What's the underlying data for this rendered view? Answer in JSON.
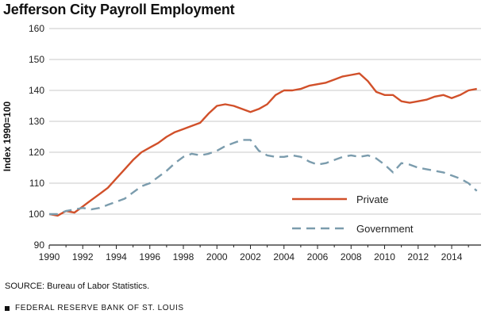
{
  "title": "Jefferson City Payroll Employment",
  "source": "SOURCE: Bureau of Labor Statistics.",
  "footer": "FEDERAL RESERVE BANK OF ST. LOUIS",
  "chart_data": {
    "type": "line",
    "title": "Jefferson City Payroll Employment",
    "ylabel": "Index 1990=100",
    "xlabel": "",
    "xlim": [
      1990,
      2015.75
    ],
    "ylim": [
      90,
      160
    ],
    "yticks": [
      90,
      100,
      110,
      120,
      130,
      140,
      150,
      160
    ],
    "xticks": [
      1990,
      1992,
      1994,
      1996,
      1998,
      2000,
      2002,
      2004,
      2006,
      2008,
      2010,
      2012,
      2014
    ],
    "grid": "horizontal",
    "legend_placement": "lower-right",
    "series": [
      {
        "name": "Private",
        "color": "#d1502a",
        "style": "solid",
        "x": [
          1990,
          1990.5,
          1991,
          1991.5,
          1992,
          1992.5,
          1993,
          1993.5,
          1994,
          1994.5,
          1995,
          1995.5,
          1996,
          1996.5,
          1997,
          1997.5,
          1998,
          1998.5,
          1999,
          1999.5,
          2000,
          2000.5,
          2001,
          2001.5,
          2002,
          2002.5,
          2003,
          2003.5,
          2004,
          2004.5,
          2005,
          2005.5,
          2006,
          2006.5,
          2007,
          2007.5,
          2008,
          2008.5,
          2009,
          2009.5,
          2010,
          2010.5,
          2011,
          2011.5,
          2012,
          2012.5,
          2013,
          2013.5,
          2014,
          2014.5,
          2015,
          2015.5
        ],
        "values": [
          100,
          99.5,
          101,
          100.5,
          102.5,
          104.5,
          106.5,
          108.5,
          111.5,
          114.5,
          117.5,
          120,
          121.5,
          123,
          125,
          126.5,
          127.5,
          128.5,
          129.5,
          132.5,
          135,
          135.5,
          135,
          134,
          133,
          134,
          135.5,
          138.5,
          140,
          140,
          140.5,
          141.5,
          142,
          142.5,
          143.5,
          144.5,
          145,
          145.5,
          143,
          139.5,
          138.5,
          138.5,
          136.5,
          136,
          136.5,
          137,
          138,
          138.5,
          137.5,
          138.5,
          140,
          140.5
        ]
      },
      {
        "name": "Government",
        "color": "#7b9cad",
        "style": "dashed",
        "x": [
          1990,
          1990.5,
          1991,
          1991.5,
          1992,
          1992.5,
          1993,
          1993.5,
          1994,
          1994.5,
          1995,
          1995.5,
          1996,
          1996.5,
          1997,
          1997.5,
          1998,
          1998.5,
          1999,
          1999.5,
          2000,
          2000.5,
          2001,
          2001.5,
          2002,
          2002.5,
          2003,
          2003.5,
          2004,
          2004.5,
          2005,
          2005.5,
          2006,
          2006.5,
          2007,
          2007.5,
          2008,
          2008.5,
          2009,
          2009.5,
          2010,
          2010.5,
          2011,
          2011.5,
          2012,
          2012.5,
          2013,
          2013.5,
          2014,
          2014.5,
          2015,
          2015.5
        ],
        "values": [
          100,
          100,
          101,
          101.5,
          102,
          101.5,
          102,
          103,
          104,
          105,
          107,
          109,
          110,
          112,
          114,
          116.5,
          118.5,
          119.5,
          119,
          119.5,
          120.5,
          122,
          123,
          124,
          124,
          120.5,
          119,
          118.5,
          118.5,
          119,
          118.5,
          117,
          116,
          116.5,
          117.5,
          118.5,
          119,
          118.5,
          119,
          118,
          116,
          113.5,
          116.5,
          116,
          115,
          114.5,
          114,
          113.5,
          112.5,
          111.5,
          110,
          107.5
        ]
      }
    ]
  }
}
